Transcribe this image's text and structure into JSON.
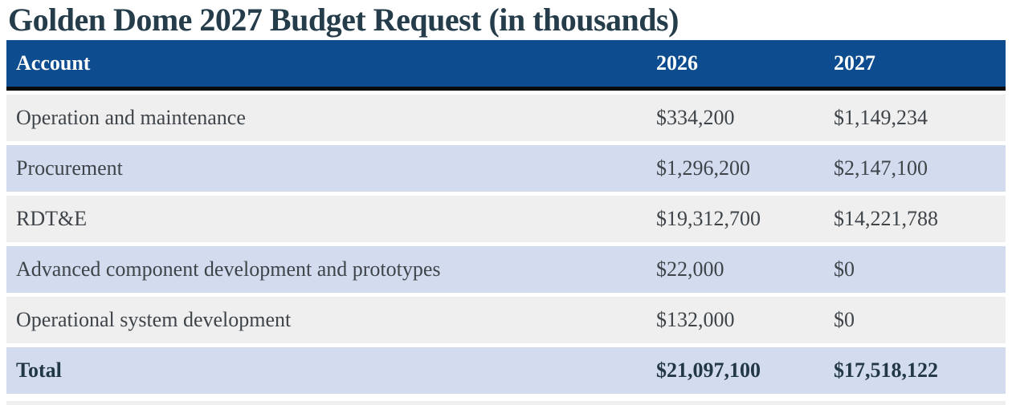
{
  "title": "Golden Dome 2027 Budget Request (in thousands)",
  "colors": {
    "header_bg": "#0d4c8e",
    "header_text": "#ffffff",
    "row_gray": "#efefef",
    "row_blue": "#d2dcee",
    "rule_black": "#0b0b0b",
    "body_text": "#3e4449",
    "title_text": "#253c4b",
    "total_text": "#223748"
  },
  "table": {
    "columns": [
      "Account",
      "2026",
      "2027"
    ],
    "rows": [
      {
        "account": "Operation and maintenance",
        "y2026": "$334,200",
        "y2027": "$1,149,234"
      },
      {
        "account": "Procurement",
        "y2026": "$1,296,200",
        "y2027": "$2,147,100"
      },
      {
        "account": "RDT&E",
        "y2026": "$19,312,700",
        "y2027": "$14,221,788"
      },
      {
        "account": "Advanced component development and prototypes",
        "y2026": "$22,000",
        "y2027": "$0"
      },
      {
        "account": "Operational system development",
        "y2026": "$132,000",
        "y2027": "$0"
      }
    ],
    "total": {
      "label": "Total",
      "y2026": "$21,097,100",
      "y2027": "$17,518,122"
    }
  },
  "chart_data": {
    "type": "table",
    "title": "Golden Dome 2027 Budget Request (in thousands)",
    "columns": [
      "Account",
      "2026",
      "2027"
    ],
    "rows": [
      [
        "Operation and maintenance",
        334200,
        1149234
      ],
      [
        "Procurement",
        1296200,
        2147100
      ],
      [
        "RDT&E",
        19312700,
        14221788
      ],
      [
        "Advanced component development and prototypes",
        22000,
        0
      ],
      [
        "Operational system development",
        132000,
        0
      ],
      [
        "Total",
        21097100,
        17518122
      ]
    ],
    "units": "USD thousands",
    "notes": "Values shown with $ prefix; Total row bold; alternating gray/blue row striping; dark blue header band with black rule beneath"
  }
}
